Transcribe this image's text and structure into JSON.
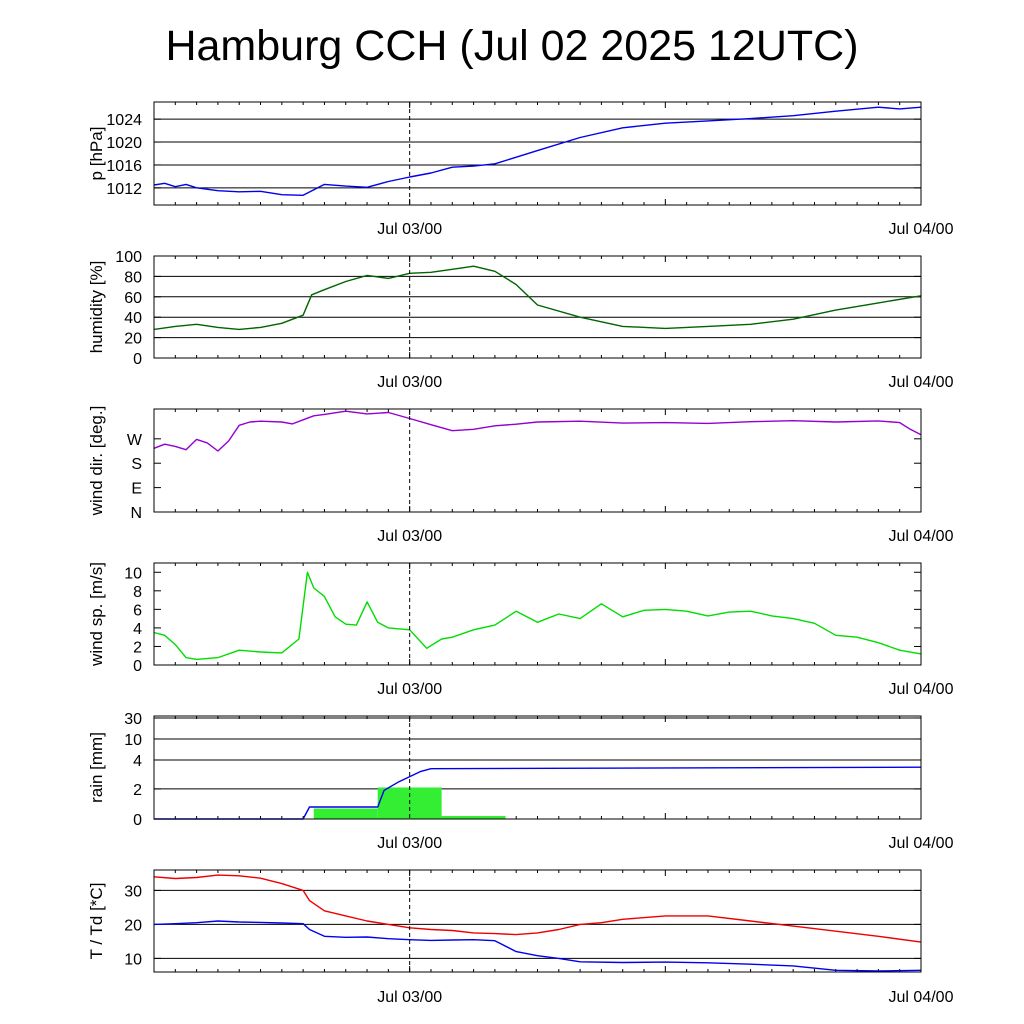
{
  "title": "Hamburg CCH (Jul 02 2025 12UTC)",
  "chart_data": [
    {
      "type": "line",
      "ylabel": "p [hPa]",
      "ylim": [
        1009,
        1027
      ],
      "yticks": [
        1012,
        1016,
        1020,
        1024
      ],
      "grid": true,
      "xtick_labels": [
        "Jul 03/00",
        "Jul 04/00"
      ],
      "xrange_hours": [
        0,
        36
      ],
      "series": [
        {
          "color": "#0000ee",
          "x": [
            0,
            0.5,
            1,
            1.5,
            2,
            3,
            4,
            5,
            6,
            7,
            8,
            9,
            10,
            11,
            12,
            13,
            14,
            15,
            16,
            18,
            20,
            22,
            24,
            26,
            28,
            30,
            32,
            34,
            35,
            36
          ],
          "y": [
            1012.5,
            1012.8,
            1012.2,
            1012.6,
            1012,
            1011.5,
            1011.3,
            1011.4,
            1010.8,
            1010.7,
            1012.6,
            1012.3,
            1012.1,
            1013.1,
            1013.9,
            1014.6,
            1015.6,
            1015.8,
            1016.2,
            1018.5,
            1020.8,
            1022.5,
            1023.3,
            1023.7,
            1024.1,
            1024.6,
            1025.4,
            1026.1,
            1025.8,
            1026.1
          ]
        }
      ]
    },
    {
      "type": "line",
      "ylabel": "humidity [%]",
      "ylim": [
        0,
        100
      ],
      "yticks": [
        0,
        20,
        40,
        60,
        80,
        100
      ],
      "grid": true,
      "xtick_labels": [
        "Jul 03/00",
        "Jul 04/00"
      ],
      "xrange_hours": [
        0,
        36
      ],
      "series": [
        {
          "color": "#006400",
          "x": [
            0,
            1,
            2,
            3,
            4,
            5,
            6,
            7,
            7.4,
            8,
            9,
            10,
            11,
            12,
            13,
            14,
            15,
            16,
            17,
            18,
            20,
            22,
            24,
            26,
            28,
            30,
            32,
            34,
            36
          ],
          "y": [
            28,
            31,
            33,
            30,
            28,
            30,
            34,
            42,
            62,
            67,
            75,
            81,
            78,
            83,
            84,
            87,
            90,
            85,
            72,
            52,
            40,
            31,
            29,
            31,
            33,
            38,
            47,
            54,
            61
          ]
        }
      ]
    },
    {
      "type": "line",
      "ylabel": "wind dir. [deg.]",
      "ylim": [
        0,
        380
      ],
      "ytick_values": [
        0,
        90,
        180,
        270
      ],
      "ytick_labels": [
        "N",
        "E",
        "S",
        "W"
      ],
      "grid": false,
      "xtick_labels": [
        "Jul 03/00",
        "Jul 04/00"
      ],
      "xrange_hours": [
        0,
        36
      ],
      "series": [
        {
          "color": "#9400d3",
          "x": [
            0,
            0.5,
            1,
            1.5,
            2,
            2.5,
            3,
            3.5,
            4,
            4.5,
            5,
            6,
            6.5,
            7,
            7.5,
            8,
            9,
            10,
            11,
            12,
            13,
            14,
            15,
            16,
            17,
            18,
            20,
            22,
            24,
            26,
            28,
            30,
            32,
            34,
            35,
            35.5,
            36
          ],
          "y": [
            235,
            250,
            242,
            230,
            268,
            255,
            225,
            262,
            320,
            332,
            335,
            332,
            325,
            340,
            355,
            360,
            372,
            362,
            367,
            345,
            322,
            300,
            305,
            318,
            324,
            332,
            335,
            328,
            330,
            327,
            333,
            337,
            332,
            336,
            330,
            305,
            285
          ]
        }
      ]
    },
    {
      "type": "line",
      "ylabel": "wind sp. [m/s]",
      "ylim": [
        0,
        11
      ],
      "yticks": [
        0,
        2,
        4,
        6,
        8,
        10
      ],
      "grid": false,
      "xtick_labels": [
        "Jul 03/00",
        "Jul 04/00"
      ],
      "xrange_hours": [
        0,
        36
      ],
      "series": [
        {
          "color": "#00dd00",
          "x": [
            0,
            0.5,
            1,
            1.5,
            2,
            3,
            4,
            5,
            6,
            6.8,
            7.2,
            7.5,
            8,
            8.5,
            9,
            9.5,
            10,
            10.5,
            11,
            12,
            12.8,
            13.5,
            14,
            15,
            16,
            17,
            18,
            19,
            20,
            21,
            22,
            23,
            24,
            25,
            26,
            27,
            28,
            29,
            30,
            31,
            32,
            33,
            34,
            35,
            36
          ],
          "y": [
            3.5,
            3.2,
            2.2,
            0.8,
            0.6,
            0.8,
            1.6,
            1.4,
            1.3,
            2.8,
            10,
            8.3,
            7.4,
            5.2,
            4.4,
            4.3,
            6.8,
            4.6,
            4.0,
            3.8,
            1.8,
            2.8,
            3.0,
            3.8,
            4.3,
            5.8,
            4.6,
            5.5,
            5.0,
            6.6,
            5.2,
            5.9,
            6.0,
            5.8,
            5.3,
            5.7,
            5.8,
            5.3,
            5.0,
            4.5,
            3.2,
            3.0,
            2.4,
            1.6,
            1.2
          ]
        }
      ]
    },
    {
      "type": "bar",
      "ylabel": "rain [mm]",
      "ytick_labels": [
        "0",
        "2",
        "4",
        "10",
        "30"
      ],
      "grid": true,
      "xtick_labels": [
        "Jul 03/00",
        "Jul 04/00"
      ],
      "xrange_hours": [
        0,
        36
      ],
      "bars": {
        "color": "#33ee33",
        "x_start": [
          7.5,
          10.5,
          13.5
        ],
        "x_end": [
          10.5,
          13.5,
          16.5
        ],
        "values": [
          0.7,
          2.1,
          0.2
        ]
      },
      "series": [
        {
          "color": "#0000ee",
          "x": [
            0,
            7.0,
            7.3,
            10.5,
            10.8,
            11.5,
            12.5,
            13.0,
            36
          ],
          "y": [
            0,
            0,
            0.8,
            0.8,
            1.9,
            2.5,
            3.2,
            3.4,
            3.5
          ]
        }
      ]
    },
    {
      "type": "line",
      "ylabel": "T / Td [*C]",
      "ylim": [
        6,
        36
      ],
      "yticks": [
        10,
        20,
        30
      ],
      "grid": true,
      "xtick_labels": [
        "Jul 03/00",
        "Jul 04/00"
      ],
      "xrange_hours": [
        0,
        36
      ],
      "series": [
        {
          "color": "#ee0000",
          "x": [
            0,
            1,
            2,
            3,
            4,
            5,
            6,
            7,
            7.3,
            8,
            9,
            10,
            11,
            12,
            13,
            14,
            15,
            16,
            17,
            18,
            19,
            20,
            21,
            22,
            24,
            26,
            28,
            30,
            32,
            34,
            36
          ],
          "y": [
            34,
            33.5,
            33.8,
            34.5,
            34.3,
            33.6,
            32,
            30,
            27,
            24,
            22.5,
            21,
            20,
            19,
            18.5,
            18.2,
            17.5,
            17.3,
            17,
            17.5,
            18.5,
            20,
            20.5,
            21.5,
            22.5,
            22.5,
            21,
            19.5,
            18,
            16.5,
            14.8
          ]
        },
        {
          "color": "#0000ee",
          "x": [
            0,
            1,
            2,
            3,
            4,
            5,
            6,
            7,
            7.3,
            8,
            9,
            10,
            11,
            12,
            13,
            14,
            15,
            16,
            17,
            18,
            19,
            20,
            22,
            24,
            26,
            28,
            30,
            32,
            34,
            36
          ],
          "y": [
            20,
            20.2,
            20.5,
            21,
            20.7,
            20.6,
            20.4,
            20.2,
            18.5,
            16.5,
            16.2,
            16.3,
            15.8,
            15.5,
            15.3,
            15.4,
            15.5,
            15.2,
            12,
            10.8,
            10,
            9,
            8.8,
            8.9,
            8.7,
            8.3,
            7.8,
            6.5,
            6.3,
            6.5
          ]
        }
      ]
    }
  ]
}
